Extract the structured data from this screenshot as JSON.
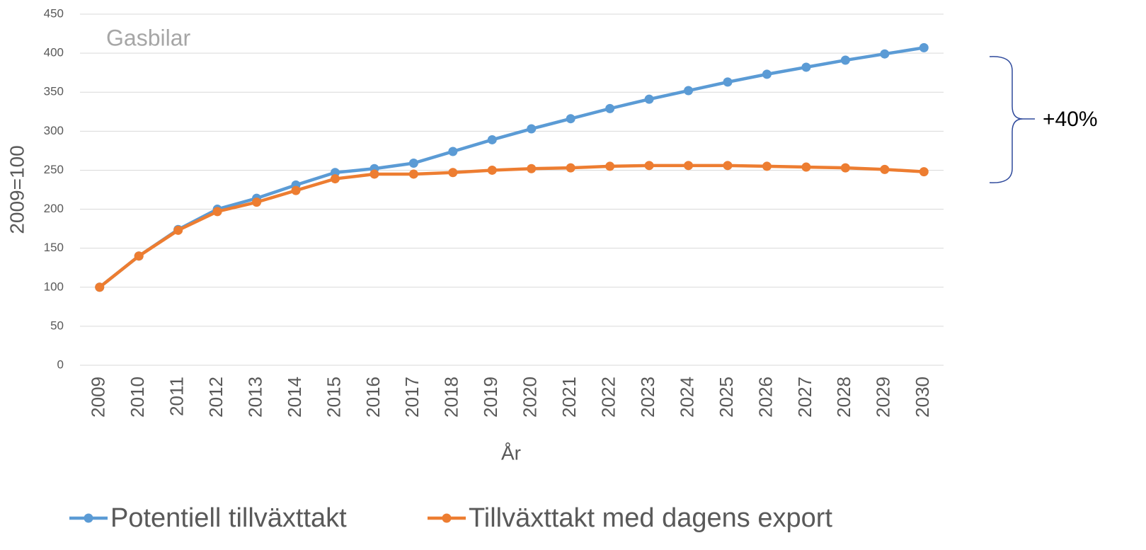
{
  "chart_data": {
    "type": "line",
    "title": "Gasbilar",
    "x_label": "År",
    "y_label": "2009=100",
    "annotation": "+40%",
    "categories": [
      "2009",
      "2010",
      "2011",
      "2012",
      "2013",
      "2014",
      "2015",
      "2016",
      "2017",
      "2018",
      "2019",
      "2020",
      "2021",
      "2022",
      "2023",
      "2024",
      "2025",
      "2026",
      "2027",
      "2028",
      "2029",
      "2030"
    ],
    "series": [
      {
        "name": "Potentiell tillväxttakt",
        "color": "#5b9bd5",
        "values": [
          100,
          140,
          174,
          200,
          214,
          231,
          247,
          252,
          259,
          274,
          289,
          303,
          316,
          329,
          341,
          352,
          363,
          373,
          382,
          391,
          399,
          407
        ]
      },
      {
        "name": "Tillväxttakt med dagens export",
        "color": "#ed7d31",
        "values": [
          100,
          140,
          173,
          197,
          209,
          224,
          239,
          245,
          245,
          247,
          250,
          252,
          253,
          255,
          256,
          256,
          256,
          255,
          254,
          253,
          251,
          248
        ]
      }
    ],
    "ylim": [
      0,
      450
    ],
    "yticks": [
      0,
      50,
      100,
      150,
      200,
      250,
      300,
      350,
      400,
      450
    ],
    "grid": true,
    "legend": "bottom"
  }
}
